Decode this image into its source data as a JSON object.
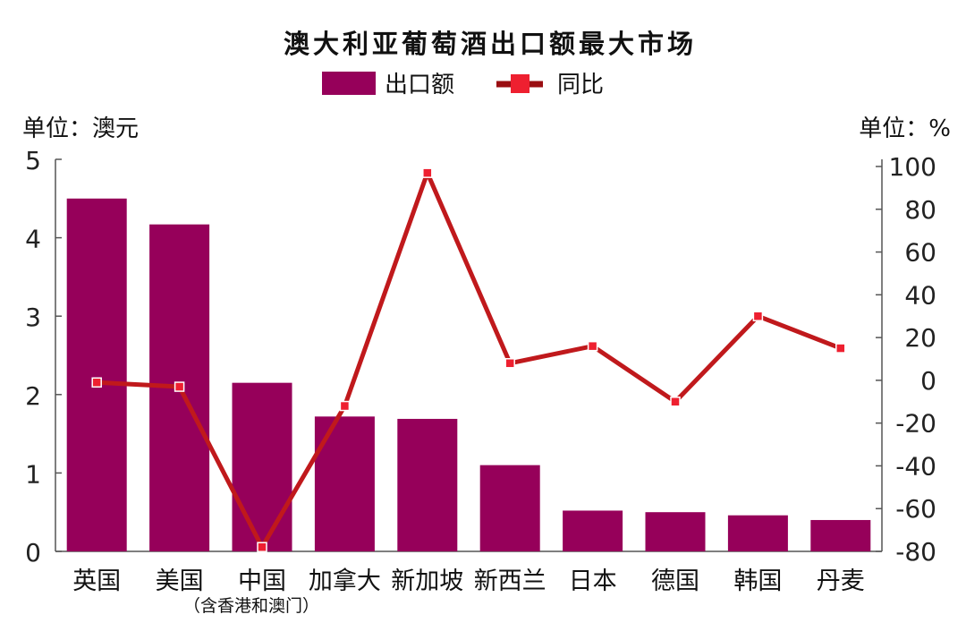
{
  "chart_data": {
    "type": "bar",
    "title": "澳大利亚葡萄酒出口额最大市场",
    "left_unit_label": "单位：澳元",
    "right_unit_label": "单位：%",
    "legend": {
      "bar_series_name": "出口额",
      "line_series_name": "同比",
      "placement": "top-center"
    },
    "categories": [
      "英国",
      "美国",
      "中国",
      "加拿大",
      "新加坡",
      "新西兰",
      "日本",
      "德国",
      "韩国",
      "丹麦"
    ],
    "category_note": "（含香港和澳门）",
    "series": [
      {
        "name": "出口额",
        "axis": "left",
        "type": "bar",
        "values": [
          4.5,
          4.17,
          2.15,
          1.72,
          1.69,
          1.1,
          0.52,
          0.5,
          0.46,
          0.4
        ],
        "color": "#96005A"
      },
      {
        "name": "同比",
        "axis": "right",
        "type": "line",
        "values": [
          -1,
          -3,
          -78,
          -12,
          97,
          8,
          16,
          -10,
          30,
          15
        ],
        "color": "#C0191C",
        "marker_color": "#EE2030"
      }
    ],
    "left_axis": {
      "ylim": [
        0,
        5
      ],
      "ticks": [
        "0",
        "1",
        "2",
        "3",
        "4",
        "5"
      ]
    },
    "right_axis": {
      "ylim": [
        -80,
        100
      ],
      "ticks": [
        "-80",
        "-60",
        "-40",
        "-20",
        "0",
        "20",
        "40",
        "60",
        "80",
        "100"
      ]
    },
    "grid": false
  }
}
